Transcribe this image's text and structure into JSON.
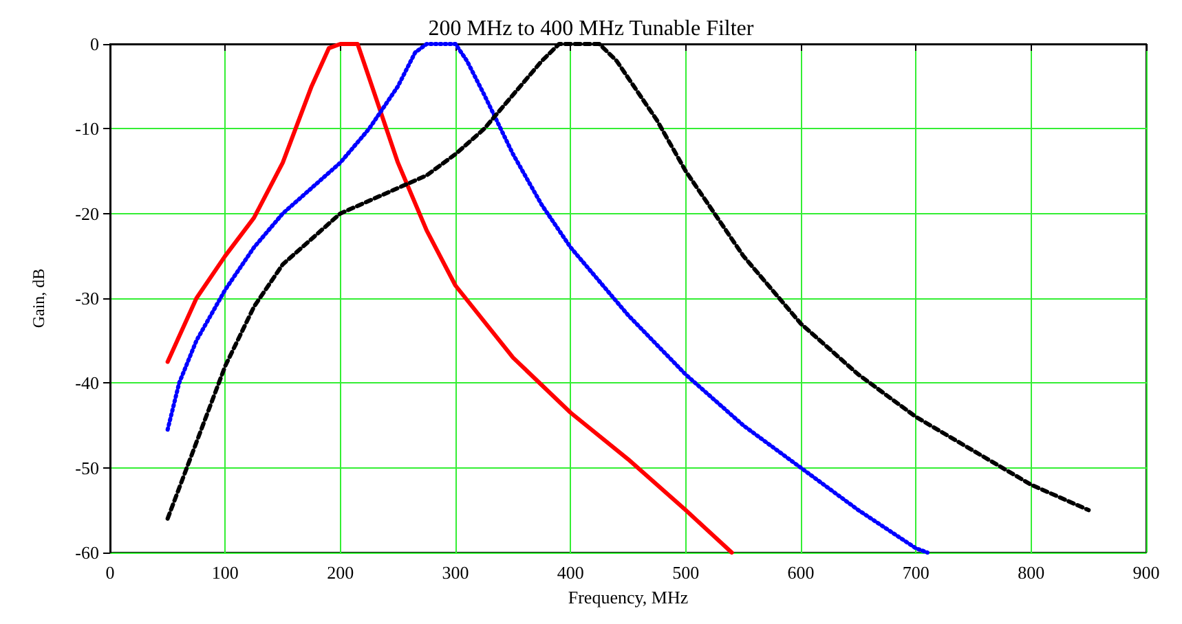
{
  "chart_data": {
    "type": "line",
    "title": "200 MHz to 400 MHz Tunable Filter",
    "xlabel": "Frequency, MHz",
    "ylabel": "Gain, dB",
    "xlim": [
      0,
      900
    ],
    "xticks": [
      0,
      100,
      200,
      300,
      400,
      500,
      600,
      700,
      800,
      900
    ],
    "ylim": [
      -60,
      0
    ],
    "yticks": [
      -60,
      -50,
      -40,
      -30,
      -20,
      -10,
      0
    ],
    "grid": true,
    "marker": "none",
    "series": [
      {
        "color": "#ff0000",
        "line_style": "solid",
        "x": [
          50,
          75,
          100,
          125,
          150,
          175,
          190,
          200,
          215,
          225,
          250,
          275,
          300,
          350,
          400,
          450,
          500,
          540
        ],
        "values": [
          -37.5,
          -30,
          -25,
          -20.5,
          -14,
          -5,
          -0.5,
          0,
          0,
          -4,
          -14,
          -22,
          -28.5,
          -37,
          -43.5,
          -49,
          -55,
          -60
        ]
      },
      {
        "color": "#0000ff",
        "line_style": "dotted",
        "x": [
          50,
          60,
          75,
          100,
          125,
          150,
          175,
          200,
          225,
          250,
          265,
          275,
          300,
          310,
          325,
          350,
          375,
          400,
          450,
          500,
          550,
          600,
          650,
          700,
          710
        ],
        "values": [
          -45.5,
          -40,
          -35,
          -29,
          -24,
          -20,
          -17,
          -14,
          -10,
          -5,
          -1,
          0,
          0,
          -2,
          -6,
          -13,
          -19,
          -24,
          -32,
          -39,
          -45,
          -50,
          -55,
          -59.5,
          -60
        ]
      },
      {
        "color": "#000000",
        "line_style": "dashed",
        "x": [
          50,
          75,
          100,
          125,
          150,
          175,
          200,
          250,
          275,
          300,
          325,
          350,
          375,
          390,
          425,
          440,
          475,
          500,
          550,
          600,
          650,
          700,
          750,
          800,
          850
        ],
        "values": [
          -56,
          -47,
          -38,
          -31,
          -26,
          -23,
          -20,
          -17,
          -15.5,
          -13,
          -10,
          -6,
          -2,
          0,
          0,
          -2,
          -9,
          -15,
          -25,
          -33,
          -39,
          -44,
          -48,
          -52,
          -55
        ]
      }
    ]
  }
}
